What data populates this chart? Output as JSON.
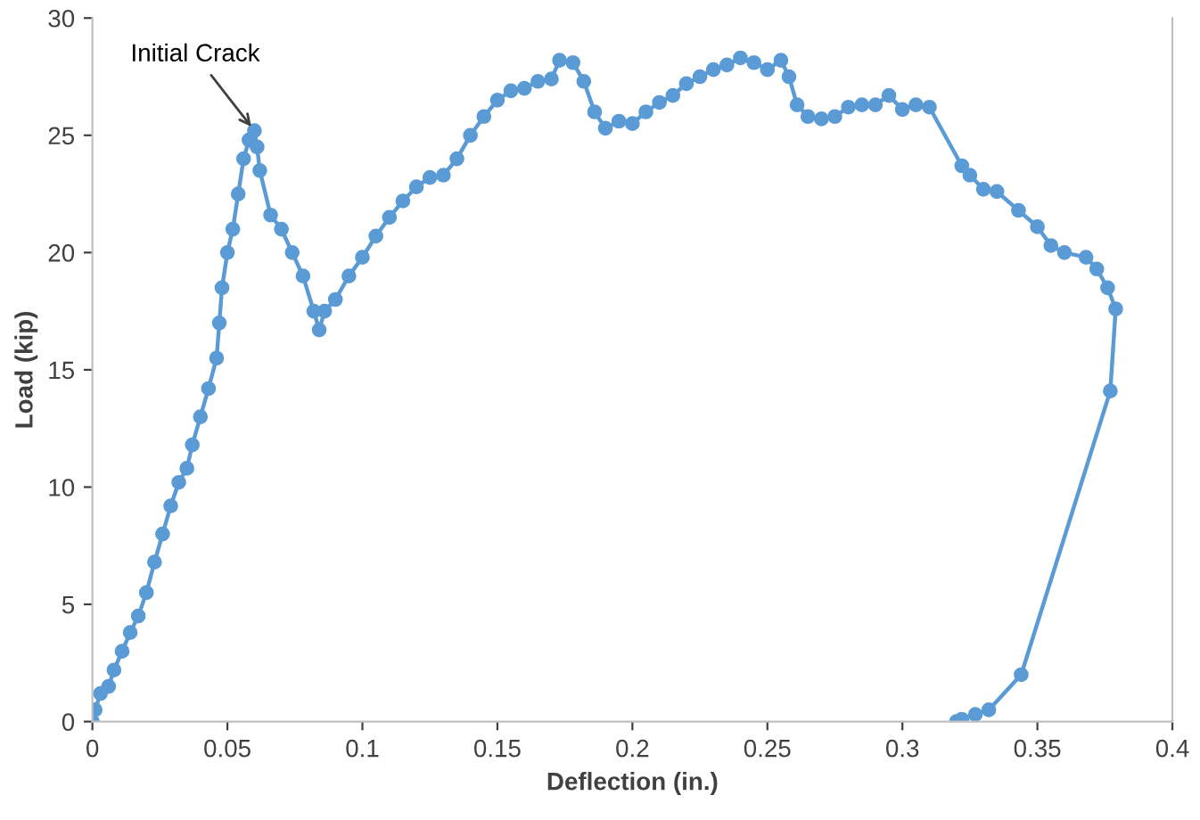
{
  "chart_data": {
    "type": "line",
    "xlabel": "Deflection (in.)",
    "ylabel": "Load (kip)",
    "xlim": [
      0,
      0.4
    ],
    "ylim": [
      0,
      30
    ],
    "xticks": [
      0,
      0.05,
      0.1,
      0.15,
      0.2,
      0.25,
      0.3,
      0.35,
      0.4
    ],
    "yticks": [
      0,
      5,
      10,
      15,
      20,
      25,
      30
    ],
    "grid": false,
    "marker": "circle",
    "line_style": "solid",
    "annotations": [
      {
        "text": "Initial Crack",
        "x": 0.06,
        "y": 25.2
      }
    ],
    "series": [
      {
        "color": "#5b9bd5",
        "x": [
          0,
          0.001,
          0.003,
          0.006,
          0.008,
          0.011,
          0.014,
          0.017,
          0.02,
          0.023,
          0.026,
          0.029,
          0.032,
          0.035,
          0.037,
          0.04,
          0.043,
          0.046,
          0.047,
          0.048,
          0.05,
          0.052,
          0.054,
          0.056,
          0.058,
          0.06,
          0.061,
          0.062,
          0.066,
          0.07,
          0.074,
          0.078,
          0.082,
          0.084,
          0.086,
          0.09,
          0.095,
          0.1,
          0.105,
          0.11,
          0.115,
          0.12,
          0.125,
          0.13,
          0.135,
          0.14,
          0.145,
          0.15,
          0.155,
          0.16,
          0.165,
          0.17,
          0.173,
          0.178,
          0.182,
          0.186,
          0.19,
          0.195,
          0.2,
          0.205,
          0.21,
          0.215,
          0.22,
          0.225,
          0.23,
          0.235,
          0.24,
          0.245,
          0.25,
          0.255,
          0.258,
          0.261,
          0.265,
          0.27,
          0.275,
          0.28,
          0.285,
          0.29,
          0.295,
          0.3,
          0.305,
          0.31,
          0.322,
          0.325,
          0.33,
          0.335,
          0.343,
          0.35,
          0.355,
          0.36,
          0.368,
          0.372,
          0.376,
          0.379,
          0.377,
          0.344,
          0.332,
          0.327,
          0.322,
          0.32
        ],
        "values": [
          0,
          0.5,
          1.2,
          1.5,
          2.2,
          3,
          3.8,
          4.5,
          5.5,
          6.8,
          8,
          9.2,
          10.2,
          10.8,
          11.8,
          13,
          14.2,
          15.5,
          17,
          18.5,
          20,
          21,
          22.5,
          24,
          24.8,
          25.2,
          24.5,
          23.5,
          21.6,
          21,
          20,
          19,
          17.5,
          16.7,
          17.5,
          18,
          19,
          19.8,
          20.7,
          21.5,
          22.2,
          22.8,
          23.2,
          23.3,
          24,
          25,
          25.8,
          26.5,
          26.9,
          27,
          27.3,
          27.4,
          28.2,
          28.1,
          27.3,
          26,
          25.3,
          25.6,
          25.5,
          26,
          26.4,
          26.7,
          27.2,
          27.5,
          27.8,
          28,
          28.3,
          28.1,
          27.8,
          28.2,
          27.5,
          26.3,
          25.8,
          25.7,
          25.8,
          26.2,
          26.3,
          26.3,
          26.7,
          26.1,
          26.3,
          26.2,
          23.7,
          23.3,
          22.7,
          22.6,
          21.8,
          21.1,
          20.3,
          20,
          19.8,
          19.3,
          18.5,
          17.6,
          14.1,
          2,
          0.5,
          0.3,
          0.1,
          0
        ]
      }
    ]
  }
}
